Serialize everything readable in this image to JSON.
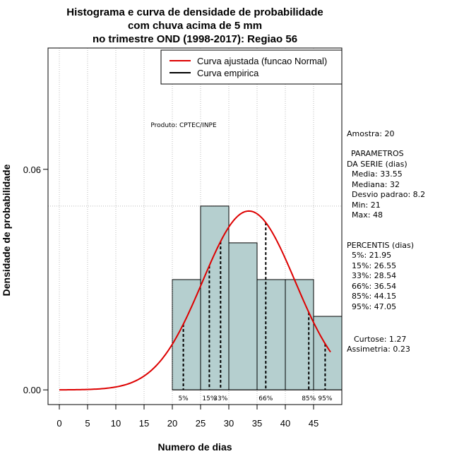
{
  "chart_data": {
    "type": "histogram",
    "title": [
      "Histograma e curva de densidade de probabilidade",
      "com chuva acima de 5 mm",
      "no trimestre OND (1998-2017): Regiao 56"
    ],
    "xlabel": "Numero de dias",
    "ylabel": "Densidade de probabilidade",
    "xlim": [
      -2,
      50
    ],
    "ylim": [
      -0.004,
      0.093
    ],
    "x_ticks": [
      0,
      5,
      10,
      15,
      20,
      25,
      30,
      35,
      40,
      45
    ],
    "y_ticks": [
      0.0,
      0.06
    ],
    "y_tick_labels": [
      "0.00",
      "0.06"
    ],
    "bins": [
      {
        "from": 20,
        "to": 25,
        "density": 0.03
      },
      {
        "from": 25,
        "to": 30,
        "density": 0.05
      },
      {
        "from": 30,
        "to": 35,
        "density": 0.04
      },
      {
        "from": 35,
        "to": 40,
        "density": 0.03
      },
      {
        "from": 40,
        "to": 45,
        "density": 0.03
      },
      {
        "from": 45,
        "to": 50,
        "density": 0.02
      }
    ],
    "bar_color": "#b5cfcf",
    "curve_color": "#dd0000",
    "normal_fit": {
      "mean": 33.55,
      "sd": 8.2,
      "x_from": 0,
      "x_to": 48
    },
    "reference_line": 0.05,
    "percentiles": [
      {
        "label": "5%",
        "x": 21.95
      },
      {
        "label": "15%",
        "x": 26.55
      },
      {
        "label": "33%",
        "x": 28.54
      },
      {
        "label": "66%",
        "x": 36.54
      },
      {
        "label": "85%",
        "x": 44.15
      },
      {
        "label": "95%",
        "x": 47.05
      }
    ],
    "legend": {
      "fitted": "Curva ajustada (funcao Normal)",
      "empirical": "Curva empirica"
    },
    "annotation": "Produto: CPTEC/INPE"
  },
  "stats": {
    "amostra": "Amostra: 20",
    "param_header_1": "PARAMETROS",
    "param_header_2": "DA SERIE (dias)",
    "media": "Media: 33.55",
    "mediana": "Mediana: 32",
    "desvio": "Desvio padrao: 8.2",
    "min": "Min: 21",
    "max": "Max: 48",
    "percentis_header": "PERCENTIS (dias)",
    "p5": "5%: 21.95",
    "p15": "15%: 26.55",
    "p33": "33%: 28.54",
    "p66": "66%: 36.54",
    "p85": "85%: 44.15",
    "p95": "95%: 47.05",
    "curtose": "Curtose: 1.27",
    "assimetria": "Assimetria: 0.23"
  }
}
